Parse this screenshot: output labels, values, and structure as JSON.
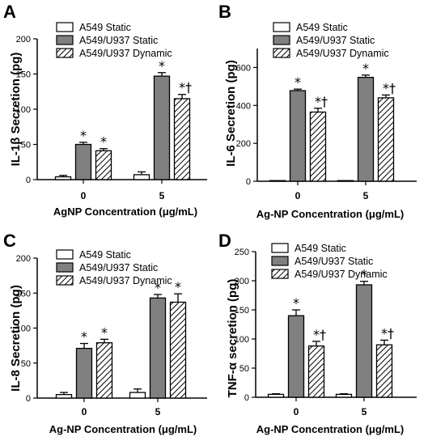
{
  "colors": {
    "static": "#ffffff",
    "coculture_static": "#808080",
    "coculture_dynamic": "hatched",
    "stroke": "#000000"
  },
  "chart_data": [
    {
      "type": "bar",
      "panel": "A",
      "ylabel": "IL-1β Secretion (pg)",
      "xlabel": "AgNP Concentration (μg/mL)",
      "categories": [
        "0",
        "5"
      ],
      "ylim": [
        0,
        200
      ],
      "yticks": [
        0,
        50,
        100,
        150,
        200
      ],
      "legend": "top-left",
      "series": [
        {
          "name": "A549 Static",
          "values": [
            4,
            7
          ],
          "errors": [
            2,
            4
          ],
          "marks": [
            "",
            ""
          ]
        },
        {
          "name": "A549/U937 Static",
          "values": [
            50,
            147
          ],
          "errors": [
            3,
            5
          ],
          "marks": [
            "*",
            "*"
          ]
        },
        {
          "name": "A549/U937 Dynamic",
          "values": [
            41,
            115
          ],
          "errors": [
            3,
            6
          ],
          "marks": [
            "*",
            "*†"
          ]
        }
      ]
    },
    {
      "type": "bar",
      "panel": "B",
      "ylabel": "IL-6 Secretion (pg)",
      "xlabel": "Ag-NP Concentration (μg/mL)",
      "categories": [
        "0",
        "5"
      ],
      "ylim": [
        0,
        700
      ],
      "yticks": [
        0,
        200,
        400,
        600
      ],
      "legend": "top-left",
      "series": [
        {
          "name": "A549 Static",
          "values": [
            0,
            0
          ],
          "errors": [
            0,
            0
          ],
          "marks": [
            "",
            ""
          ]
        },
        {
          "name": "A549/U937 Static",
          "values": [
            478,
            548
          ],
          "errors": [
            8,
            12
          ],
          "marks": [
            "*",
            "*"
          ]
        },
        {
          "name": "A549/U937 Dynamic",
          "values": [
            365,
            440
          ],
          "errors": [
            20,
            15
          ],
          "marks": [
            "*†",
            "*†"
          ]
        }
      ]
    },
    {
      "type": "bar",
      "panel": "C",
      "ylabel": "IL-8 Secretion (pg)",
      "xlabel": "Ag-NP Concentration (μg/mL)",
      "categories": [
        "0",
        "5"
      ],
      "ylim": [
        0,
        200
      ],
      "yticks": [
        0,
        50,
        100,
        150,
        200
      ],
      "legend": "top-left",
      "series": [
        {
          "name": "A549 Static",
          "values": [
            5,
            8
          ],
          "errors": [
            3,
            5
          ],
          "marks": [
            "",
            ""
          ]
        },
        {
          "name": "A549/U937 Static",
          "values": [
            71,
            143
          ],
          "errors": [
            7,
            5
          ],
          "marks": [
            "*",
            "*"
          ]
        },
        {
          "name": "A549/U937 Dynamic",
          "values": [
            79,
            137
          ],
          "errors": [
            5,
            12
          ],
          "marks": [
            "*",
            "*"
          ]
        }
      ]
    },
    {
      "type": "bar",
      "panel": "D",
      "ylabel": "TNF-α secretion (pg)",
      "xlabel": "Ag-NP Concentration (μg/mL)",
      "categories": [
        "0",
        "5"
      ],
      "ylim": [
        0,
        250
      ],
      "yticks": [
        0,
        50,
        100,
        150,
        200,
        250
      ],
      "legend": "top-left",
      "series": [
        {
          "name": "A549 Static",
          "values": [
            5,
            5
          ],
          "errors": [
            1,
            1
          ],
          "marks": [
            "",
            ""
          ]
        },
        {
          "name": "A549/U937 Static",
          "values": [
            140,
            193
          ],
          "errors": [
            10,
            6
          ],
          "marks": [
            "*",
            "*"
          ]
        },
        {
          "name": "A549/U937 Dynamic",
          "values": [
            88,
            90
          ],
          "errors": [
            8,
            8
          ],
          "marks": [
            "*†",
            "*†"
          ]
        }
      ]
    }
  ]
}
